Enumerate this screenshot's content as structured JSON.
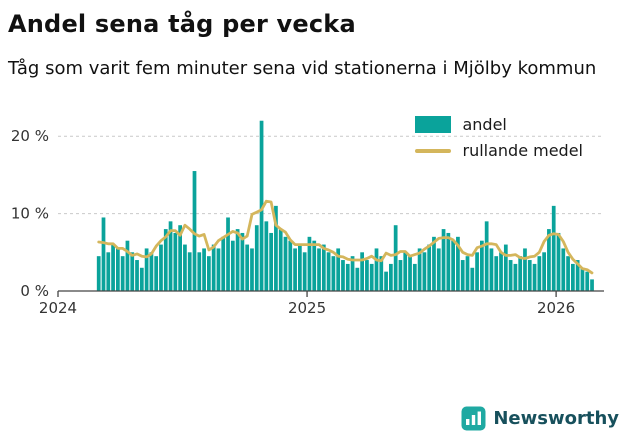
{
  "title": "Andel sena tåg per vecka",
  "subtitle": "Tåg som varit fem minuter sena vid stationerna i Mjölby kommun",
  "footer": {
    "brand": "Newsworthy"
  },
  "colors": {
    "bar": "#0aa39b",
    "line": "#d4b65c",
    "axis": "#444444",
    "grid": "#c9c9c9",
    "text": "#333333",
    "brand_icon": "#1fa9a2",
    "brand_text": "#17505c"
  },
  "chart_data": {
    "type": "bar",
    "title": "Andel sena tåg per vecka",
    "subtitle": "Tåg som varit fem minuter sena vid stationerna i Mjölby kommun",
    "xlabel": "",
    "ylabel": "",
    "ylim": [
      0,
      23
    ],
    "y_ticks": [
      {
        "value": 0,
        "label": "0 %"
      },
      {
        "value": 10,
        "label": "10 %"
      },
      {
        "value": 20,
        "label": "20 %"
      }
    ],
    "y_gridlines": [
      10,
      20
    ],
    "x_ticks": [
      {
        "offset": 0,
        "label": "2024"
      },
      {
        "offset": 52,
        "label": "2025"
      },
      {
        "offset": 104,
        "label": "2026"
      }
    ],
    "x_total_weeks": 114,
    "x_start_offset": 8,
    "x_unit": "week",
    "legend_position": "top-right",
    "series": [
      {
        "name": "andel",
        "type": "bar",
        "values": [
          4.5,
          9.5,
          5,
          6,
          5.5,
          4.5,
          6.5,
          5,
          4,
          3,
          5.5,
          5,
          4.5,
          6,
          8,
          9,
          7.5,
          8.5,
          6,
          5,
          15.5,
          5,
          5.5,
          4.5,
          6,
          5.5,
          7,
          9.5,
          6.5,
          8,
          7.5,
          6,
          5.5,
          8.5,
          22,
          9,
          7.5,
          11,
          8,
          7,
          6.5,
          5.5,
          6,
          5,
          7,
          6.5,
          5.5,
          6,
          5,
          4.5,
          5.5,
          4,
          3.5,
          4.5,
          3,
          5,
          4,
          3.5,
          5.5,
          4.5,
          2.5,
          3.5,
          8.5,
          4,
          5,
          4.5,
          3.5,
          5.5,
          5,
          6,
          7,
          5.5,
          8,
          7.5,
          6.5,
          7,
          4,
          4.5,
          3,
          5,
          6.5,
          9,
          5.5,
          4.5,
          5,
          6,
          4,
          3.5,
          4.5,
          5.5,
          4,
          3.5,
          4.5,
          5,
          8,
          11,
          7.5,
          5.5,
          4.5,
          3.5,
          4,
          3,
          2.5,
          1.5
        ]
      },
      {
        "name": "rullande medel",
        "type": "line",
        "derived": "rolling_mean",
        "window": 5
      }
    ]
  }
}
